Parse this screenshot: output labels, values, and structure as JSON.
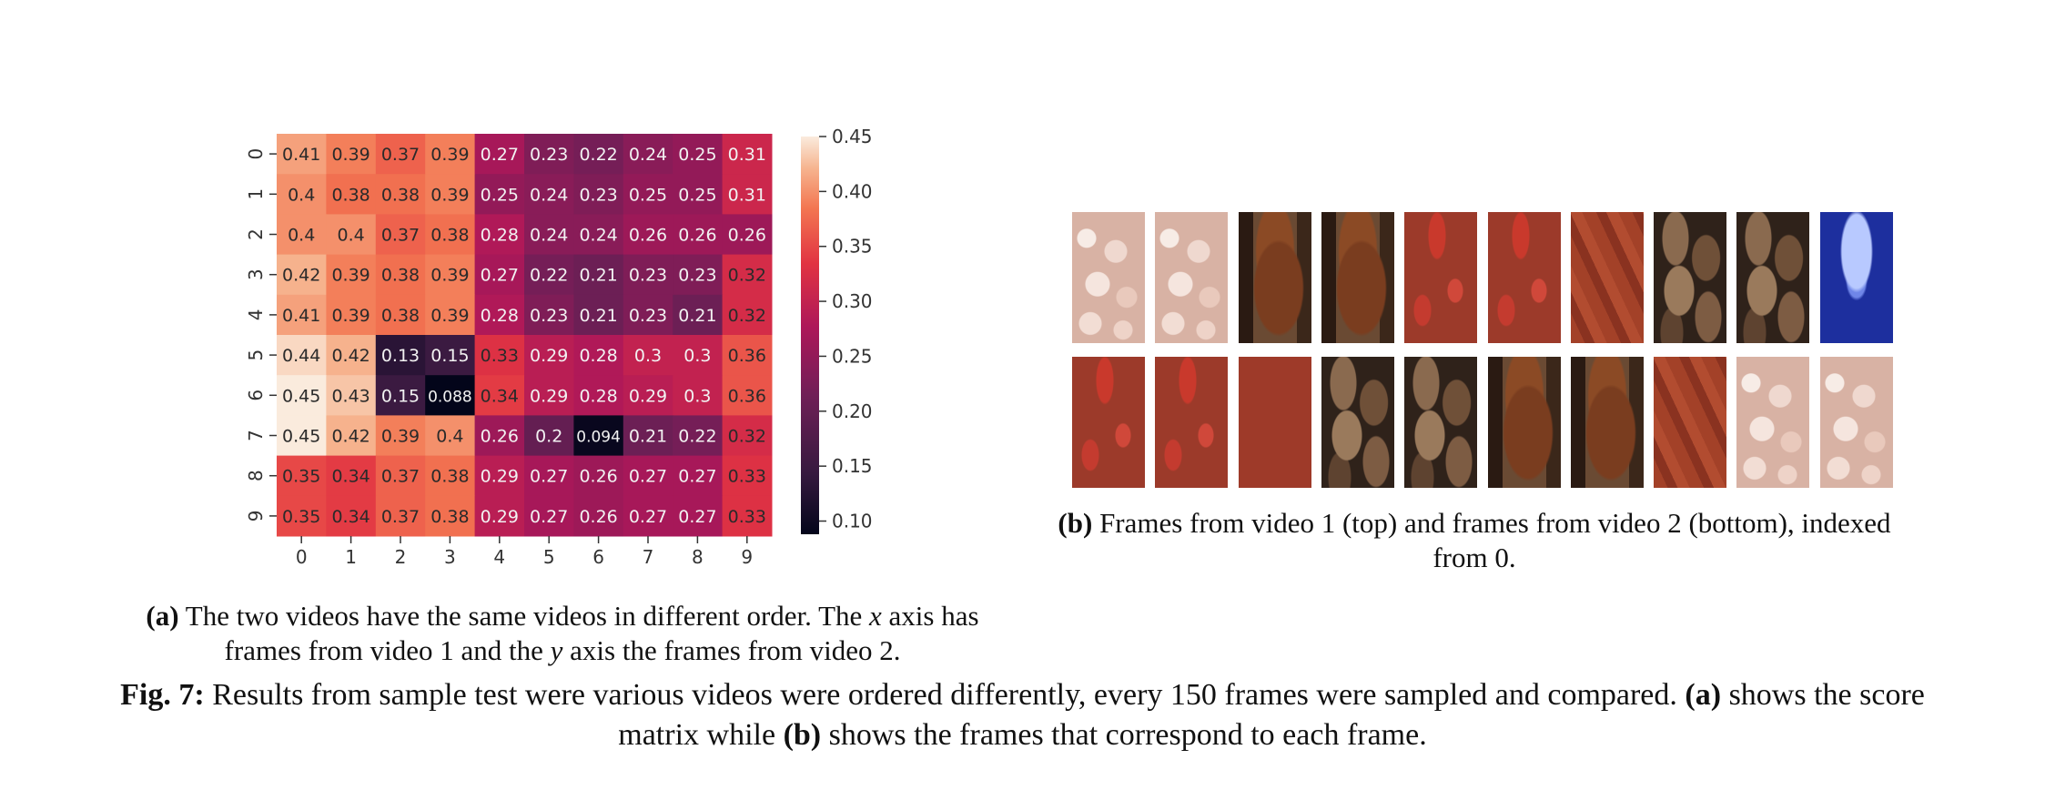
{
  "colors": {
    "heat_low": "#03051a",
    "heat_high": "#faebdd"
  },
  "chart_data": {
    "type": "heatmap",
    "x": [
      "0",
      "1",
      "2",
      "3",
      "4",
      "5",
      "6",
      "7",
      "8",
      "9"
    ],
    "y": [
      "0",
      "1",
      "2",
      "3",
      "4",
      "5",
      "6",
      "7",
      "8",
      "9"
    ],
    "values": [
      [
        0.41,
        0.39,
        0.37,
        0.39,
        0.27,
        0.23,
        0.22,
        0.24,
        0.25,
        0.31
      ],
      [
        0.4,
        0.38,
        0.38,
        0.39,
        0.25,
        0.24,
        0.23,
        0.25,
        0.25,
        0.31
      ],
      [
        0.4,
        0.4,
        0.37,
        0.38,
        0.28,
        0.24,
        0.24,
        0.26,
        0.26,
        0.26
      ],
      [
        0.42,
        0.39,
        0.38,
        0.39,
        0.27,
        0.22,
        0.21,
        0.23,
        0.23,
        0.32
      ],
      [
        0.41,
        0.39,
        0.38,
        0.39,
        0.28,
        0.23,
        0.21,
        0.23,
        0.21,
        0.32
      ],
      [
        0.44,
        0.42,
        0.13,
        0.15,
        0.33,
        0.29,
        0.28,
        0.3,
        0.3,
        0.36
      ],
      [
        0.45,
        0.43,
        0.15,
        0.088,
        0.34,
        0.29,
        0.28,
        0.29,
        0.3,
        0.36
      ],
      [
        0.45,
        0.42,
        0.39,
        0.4,
        0.26,
        0.2,
        0.094,
        0.21,
        0.22,
        0.32
      ],
      [
        0.35,
        0.34,
        0.37,
        0.38,
        0.29,
        0.27,
        0.26,
        0.27,
        0.27,
        0.33
      ],
      [
        0.35,
        0.34,
        0.37,
        0.38,
        0.29,
        0.27,
        0.26,
        0.27,
        0.27,
        0.33
      ]
    ],
    "colorbar_ticks": [
      "0.45",
      "0.40",
      "0.35",
      "0.30",
      "0.25",
      "0.20",
      "0.15",
      "0.10"
    ],
    "colorbar_range": [
      0.088,
      0.45
    ],
    "colormap": "rocket"
  },
  "frames": {
    "top": [
      "popcorn",
      "popcorn",
      "horse",
      "horse",
      "strawberry",
      "strawberry",
      "drape",
      "nuts",
      "nuts",
      "jelly"
    ],
    "bottom": [
      "strawberry",
      "strawberry",
      "redbg",
      "nuts",
      "nuts",
      "horse",
      "horse",
      "drape",
      "popcorn",
      "popcorn"
    ]
  },
  "captions": {
    "a_label": "(a)",
    "a_text_1": " The two videos have the same videos in different order. The ",
    "a_x": "x",
    "a_text_2": " axis has frames from video 1 and the ",
    "a_y": "y",
    "a_text_3": " axis the frames from video 2.",
    "b_label": "(b)",
    "b_text": " Frames from video 1 (top) and frames from video 2 (bottom), indexed from 0.",
    "fig_label": "Fig. 7:",
    "fig_text_1": " Results from sample test were various videos were ordered differently, every 150 frames were sampled and compared. ",
    "fig_a": "(a)",
    "fig_text_2": " shows the score matrix while ",
    "fig_b": "(b)",
    "fig_text_3": " shows the frames that correspond to each frame."
  }
}
